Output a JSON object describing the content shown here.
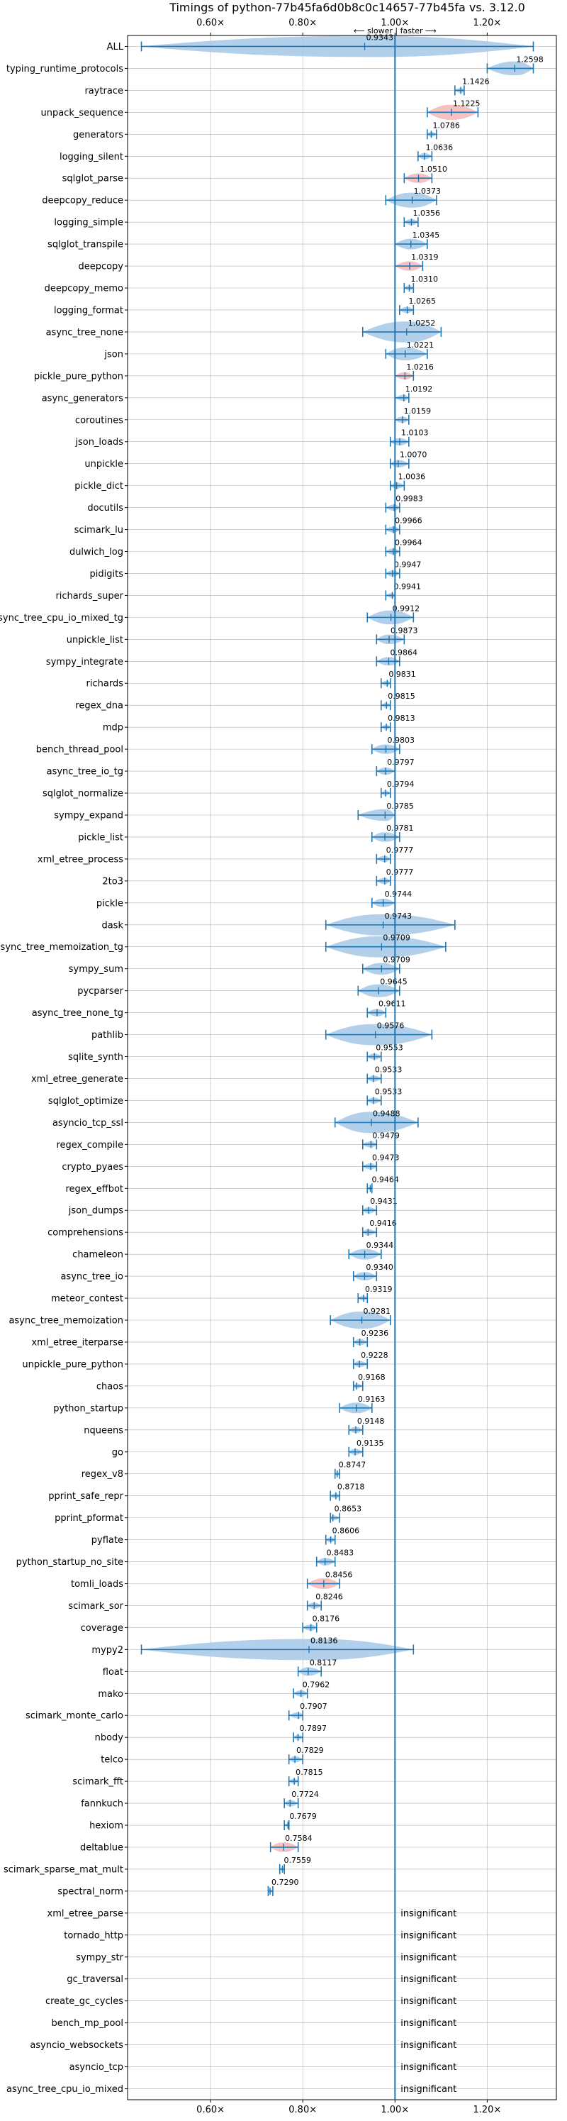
{
  "chart_data": {
    "type": "violin",
    "title": "Timings of python-77b45fa6d0b8c0c14657-77b45fa vs. 3.12.0",
    "direction_label": "⟵ slower | faster ⟶",
    "x_ticks": [
      0.6,
      0.8,
      1.0,
      1.2
    ],
    "x_tick_labels": [
      "0.60×",
      "0.80×",
      "1.00×",
      "1.20×"
    ],
    "xlim": [
      0.42,
      1.35
    ],
    "reference_line": 1.0,
    "colors": {
      "violin": "#a6c8e6",
      "violin_highlight": "#f4b6b6",
      "line": "#1f77b4",
      "ref": "#1f77b4",
      "grid": "#b0b0b0"
    },
    "benchmarks": [
      {
        "name": "ALL",
        "value": 0.9343,
        "min": 0.45,
        "max": 1.3,
        "label": "0.9343"
      },
      {
        "name": "typing_runtime_protocols",
        "value": 1.2598,
        "min": 1.2,
        "max": 1.3,
        "label": "1.2598"
      },
      {
        "name": "raytrace",
        "value": 1.1426,
        "min": 1.13,
        "max": 1.15,
        "label": "1.1426"
      },
      {
        "name": "unpack_sequence",
        "value": 1.1225,
        "min": 1.07,
        "max": 1.18,
        "label": "1.1225",
        "highlight": true
      },
      {
        "name": "generators",
        "value": 1.0786,
        "min": 1.07,
        "max": 1.09,
        "label": "1.0786"
      },
      {
        "name": "logging_silent",
        "value": 1.0636,
        "min": 1.05,
        "max": 1.08,
        "label": "1.0636"
      },
      {
        "name": "sqlglot_parse",
        "value": 1.051,
        "min": 1.02,
        "max": 1.08,
        "label": "1.0510",
        "highlight": true
      },
      {
        "name": "deepcopy_reduce",
        "value": 1.0373,
        "min": 0.98,
        "max": 1.09,
        "label": "1.0373"
      },
      {
        "name": "logging_simple",
        "value": 1.0356,
        "min": 1.02,
        "max": 1.05,
        "label": "1.0356"
      },
      {
        "name": "sqlglot_transpile",
        "value": 1.0345,
        "min": 1.0,
        "max": 1.07,
        "label": "1.0345"
      },
      {
        "name": "deepcopy",
        "value": 1.0319,
        "min": 1.0,
        "max": 1.06,
        "label": "1.0319",
        "highlight": true
      },
      {
        "name": "deepcopy_memo",
        "value": 1.031,
        "min": 1.02,
        "max": 1.04,
        "label": "1.0310"
      },
      {
        "name": "logging_format",
        "value": 1.0265,
        "min": 1.01,
        "max": 1.04,
        "label": "1.0265"
      },
      {
        "name": "async_tree_none",
        "value": 1.0252,
        "min": 0.93,
        "max": 1.1,
        "label": "1.0252"
      },
      {
        "name": "json",
        "value": 1.0221,
        "min": 0.98,
        "max": 1.07,
        "label": "1.0221"
      },
      {
        "name": "pickle_pure_python",
        "value": 1.0216,
        "min": 1.0,
        "max": 1.04,
        "label": "1.0216",
        "highlight": true
      },
      {
        "name": "async_generators",
        "value": 1.0192,
        "min": 1.0,
        "max": 1.03,
        "label": "1.0192"
      },
      {
        "name": "coroutines",
        "value": 1.0159,
        "min": 1.0,
        "max": 1.03,
        "label": "1.0159"
      },
      {
        "name": "json_loads",
        "value": 1.0103,
        "min": 0.99,
        "max": 1.03,
        "label": "1.0103"
      },
      {
        "name": "unpickle",
        "value": 1.007,
        "min": 0.99,
        "max": 1.03,
        "label": "1.0070"
      },
      {
        "name": "pickle_dict",
        "value": 1.0036,
        "min": 0.99,
        "max": 1.02,
        "label": "1.0036"
      },
      {
        "name": "docutils",
        "value": 0.9983,
        "min": 0.98,
        "max": 1.01,
        "label": "0.9983"
      },
      {
        "name": "scimark_lu",
        "value": 0.9966,
        "min": 0.98,
        "max": 1.01,
        "label": "0.9966"
      },
      {
        "name": "dulwich_log",
        "value": 0.9964,
        "min": 0.98,
        "max": 1.01,
        "label": "0.9964"
      },
      {
        "name": "pidigits",
        "value": 0.9947,
        "min": 0.98,
        "max": 1.01,
        "label": "0.9947"
      },
      {
        "name": "richards_super",
        "value": 0.9941,
        "min": 0.98,
        "max": 1.0,
        "label": "0.9941"
      },
      {
        "name": "async_tree_cpu_io_mixed_tg",
        "value": 0.9912,
        "min": 0.94,
        "max": 1.04,
        "label": "0.9912"
      },
      {
        "name": "unpickle_list",
        "value": 0.9873,
        "min": 0.96,
        "max": 1.02,
        "label": "0.9873"
      },
      {
        "name": "sympy_integrate",
        "value": 0.9864,
        "min": 0.96,
        "max": 1.01,
        "label": "0.9864"
      },
      {
        "name": "richards",
        "value": 0.9831,
        "min": 0.97,
        "max": 0.99,
        "label": "0.9831"
      },
      {
        "name": "regex_dna",
        "value": 0.9815,
        "min": 0.97,
        "max": 0.99,
        "label": "0.9815"
      },
      {
        "name": "mdp",
        "value": 0.9813,
        "min": 0.97,
        "max": 0.99,
        "label": "0.9813"
      },
      {
        "name": "bench_thread_pool",
        "value": 0.9803,
        "min": 0.95,
        "max": 1.01,
        "label": "0.9803"
      },
      {
        "name": "async_tree_io_tg",
        "value": 0.9797,
        "min": 0.96,
        "max": 1.0,
        "label": "0.9797"
      },
      {
        "name": "sqlglot_normalize",
        "value": 0.9794,
        "min": 0.97,
        "max": 0.99,
        "label": "0.9794"
      },
      {
        "name": "sympy_expand",
        "value": 0.9785,
        "min": 0.92,
        "max": 1.0,
        "label": "0.9785"
      },
      {
        "name": "pickle_list",
        "value": 0.9781,
        "min": 0.95,
        "max": 1.01,
        "label": "0.9781"
      },
      {
        "name": "xml_etree_process",
        "value": 0.9777,
        "min": 0.96,
        "max": 0.99,
        "label": "0.9777"
      },
      {
        "name": "2to3",
        "value": 0.9777,
        "min": 0.96,
        "max": 0.99,
        "label": "0.9777"
      },
      {
        "name": "pickle",
        "value": 0.9744,
        "min": 0.95,
        "max": 1.0,
        "label": "0.9744"
      },
      {
        "name": "dask",
        "value": 0.9743,
        "min": 0.85,
        "max": 1.13,
        "label": "0.9743"
      },
      {
        "name": "async_tree_memoization_tg",
        "value": 0.9709,
        "min": 0.85,
        "max": 1.11,
        "label": "0.9709"
      },
      {
        "name": "sympy_sum",
        "value": 0.9709,
        "min": 0.93,
        "max": 1.01,
        "label": "0.9709"
      },
      {
        "name": "pycparser",
        "value": 0.9645,
        "min": 0.92,
        "max": 1.01,
        "label": "0.9645"
      },
      {
        "name": "async_tree_none_tg",
        "value": 0.9611,
        "min": 0.94,
        "max": 0.98,
        "label": "0.9611"
      },
      {
        "name": "pathlib",
        "value": 0.9576,
        "min": 0.85,
        "max": 1.08,
        "label": "0.9576"
      },
      {
        "name": "sqlite_synth",
        "value": 0.9553,
        "min": 0.94,
        "max": 0.97,
        "label": "0.9553"
      },
      {
        "name": "xml_etree_generate",
        "value": 0.9533,
        "min": 0.94,
        "max": 0.97,
        "label": "0.9533"
      },
      {
        "name": "sqlglot_optimize",
        "value": 0.9533,
        "min": 0.94,
        "max": 0.97,
        "label": "0.9533"
      },
      {
        "name": "asyncio_tcp_ssl",
        "value": 0.9488,
        "min": 0.87,
        "max": 1.05,
        "label": "0.9488"
      },
      {
        "name": "regex_compile",
        "value": 0.9479,
        "min": 0.93,
        "max": 0.96,
        "label": "0.9479"
      },
      {
        "name": "crypto_pyaes",
        "value": 0.9473,
        "min": 0.93,
        "max": 0.96,
        "label": "0.9473"
      },
      {
        "name": "regex_effbot",
        "value": 0.9464,
        "min": 0.94,
        "max": 0.95,
        "label": "0.9464"
      },
      {
        "name": "json_dumps",
        "value": 0.9431,
        "min": 0.93,
        "max": 0.96,
        "label": "0.9431"
      },
      {
        "name": "comprehensions",
        "value": 0.9416,
        "min": 0.93,
        "max": 0.96,
        "label": "0.9416"
      },
      {
        "name": "chameleon",
        "value": 0.9344,
        "min": 0.9,
        "max": 0.97,
        "label": "0.9344"
      },
      {
        "name": "async_tree_io",
        "value": 0.934,
        "min": 0.91,
        "max": 0.96,
        "label": "0.9340"
      },
      {
        "name": "meteor_contest",
        "value": 0.9319,
        "min": 0.92,
        "max": 0.94,
        "label": "0.9319"
      },
      {
        "name": "async_tree_memoization",
        "value": 0.9281,
        "min": 0.86,
        "max": 0.99,
        "label": "0.9281"
      },
      {
        "name": "xml_etree_iterparse",
        "value": 0.9236,
        "min": 0.91,
        "max": 0.94,
        "label": "0.9236"
      },
      {
        "name": "unpickle_pure_python",
        "value": 0.9228,
        "min": 0.91,
        "max": 0.94,
        "label": "0.9228"
      },
      {
        "name": "chaos",
        "value": 0.9168,
        "min": 0.91,
        "max": 0.93,
        "label": "0.9168"
      },
      {
        "name": "python_startup",
        "value": 0.9163,
        "min": 0.88,
        "max": 0.95,
        "label": "0.9163"
      },
      {
        "name": "nqueens",
        "value": 0.9148,
        "min": 0.9,
        "max": 0.93,
        "label": "0.9148"
      },
      {
        "name": "go",
        "value": 0.9135,
        "min": 0.9,
        "max": 0.93,
        "label": "0.9135"
      },
      {
        "name": "regex_v8",
        "value": 0.8747,
        "min": 0.87,
        "max": 0.88,
        "label": "0.8747"
      },
      {
        "name": "pprint_safe_repr",
        "value": 0.8718,
        "min": 0.86,
        "max": 0.88,
        "label": "0.8718"
      },
      {
        "name": "pprint_pformat",
        "value": 0.8653,
        "min": 0.86,
        "max": 0.88,
        "label": "0.8653"
      },
      {
        "name": "pyflate",
        "value": 0.8606,
        "min": 0.85,
        "max": 0.87,
        "label": "0.8606"
      },
      {
        "name": "python_startup_no_site",
        "value": 0.8483,
        "min": 0.83,
        "max": 0.87,
        "label": "0.8483"
      },
      {
        "name": "tomli_loads",
        "value": 0.8456,
        "min": 0.81,
        "max": 0.88,
        "label": "0.8456",
        "highlight": true
      },
      {
        "name": "scimark_sor",
        "value": 0.8246,
        "min": 0.81,
        "max": 0.84,
        "label": "0.8246"
      },
      {
        "name": "coverage",
        "value": 0.8176,
        "min": 0.8,
        "max": 0.83,
        "label": "0.8176"
      },
      {
        "name": "mypy2",
        "value": 0.8136,
        "min": 0.45,
        "max": 1.04,
        "label": "0.8136"
      },
      {
        "name": "float",
        "value": 0.8117,
        "min": 0.79,
        "max": 0.84,
        "label": "0.8117"
      },
      {
        "name": "mako",
        "value": 0.7962,
        "min": 0.78,
        "max": 0.81,
        "label": "0.7962"
      },
      {
        "name": "scimark_monte_carlo",
        "value": 0.7907,
        "min": 0.77,
        "max": 0.8,
        "label": "0.7907"
      },
      {
        "name": "nbody",
        "value": 0.7897,
        "min": 0.78,
        "max": 0.8,
        "label": "0.7897"
      },
      {
        "name": "telco",
        "value": 0.7829,
        "min": 0.77,
        "max": 0.8,
        "label": "0.7829"
      },
      {
        "name": "scimark_fft",
        "value": 0.7815,
        "min": 0.77,
        "max": 0.79,
        "label": "0.7815"
      },
      {
        "name": "fannkuch",
        "value": 0.7724,
        "min": 0.76,
        "max": 0.79,
        "label": "0.7724"
      },
      {
        "name": "hexiom",
        "value": 0.7679,
        "min": 0.76,
        "max": 0.77,
        "label": "0.7679"
      },
      {
        "name": "deltablue",
        "value": 0.7584,
        "min": 0.73,
        "max": 0.79,
        "label": "0.7584",
        "highlight": true
      },
      {
        "name": "scimark_sparse_mat_mult",
        "value": 0.7559,
        "min": 0.75,
        "max": 0.76,
        "label": "0.7559"
      },
      {
        "name": "spectral_norm",
        "value": 0.729,
        "min": 0.725,
        "max": 0.735,
        "label": "0.7290"
      },
      {
        "name": "xml_etree_parse",
        "insignificant": true,
        "label": "insignificant"
      },
      {
        "name": "tornado_http",
        "insignificant": true,
        "label": "insignificant"
      },
      {
        "name": "sympy_str",
        "insignificant": true,
        "label": "insignificant"
      },
      {
        "name": "gc_traversal",
        "insignificant": true,
        "label": "insignificant"
      },
      {
        "name": "create_gc_cycles",
        "insignificant": true,
        "label": "insignificant"
      },
      {
        "name": "bench_mp_pool",
        "insignificant": true,
        "label": "insignificant"
      },
      {
        "name": "asyncio_websockets",
        "insignificant": true,
        "label": "insignificant"
      },
      {
        "name": "asyncio_tcp",
        "insignificant": true,
        "label": "insignificant"
      },
      {
        "name": "async_tree_cpu_io_mixed",
        "insignificant": true,
        "label": "insignificant"
      }
    ]
  }
}
